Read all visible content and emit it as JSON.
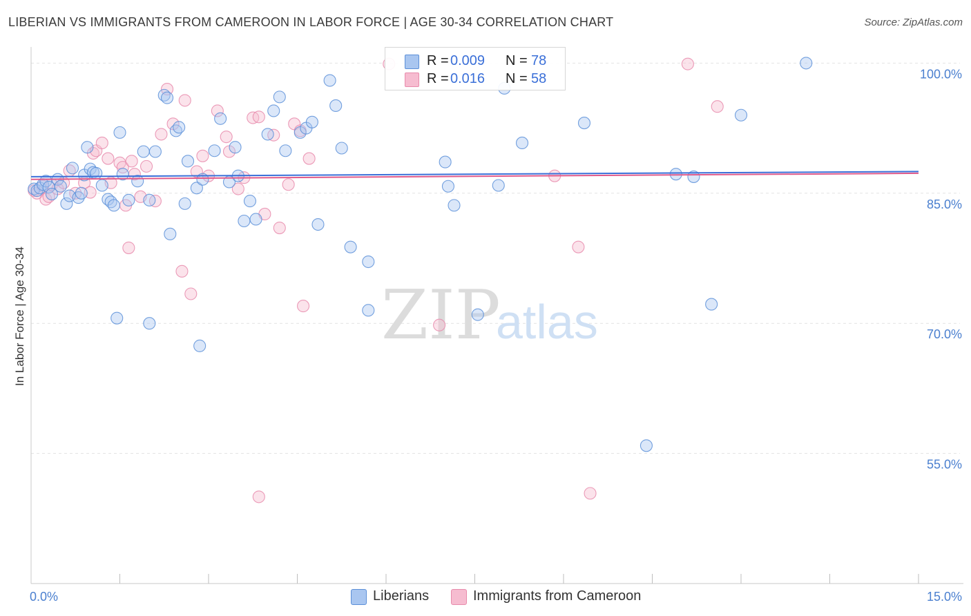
{
  "title": "LIBERIAN VS IMMIGRANTS FROM CAMEROON IN LABOR FORCE | AGE 30-34 CORRELATION CHART",
  "source": "Source: ZipAtlas.com",
  "colors": {
    "liberians_fill": "#a9c6f0",
    "liberians_stroke": "#5b8fd8",
    "liberians_line": "#3a6fd8",
    "cameroon_fill": "#f6bcd0",
    "cameroon_stroke": "#e88aab",
    "cameroon_line": "#e05a8a",
    "tick_label": "#4a7fcf"
  },
  "legend_top": {
    "rows": [
      {
        "r_label": "R =",
        "r_value": "0.009",
        "n_label": "N =",
        "n_value": "78"
      },
      {
        "r_label": "R =",
        "r_value": "0.016",
        "n_label": "N =",
        "n_value": "58"
      }
    ]
  },
  "legend_bottom": {
    "items": [
      "Liberians",
      "Immigrants from Cameroon"
    ]
  },
  "watermark": {
    "zip": "ZIP",
    "atlas": "atlas"
  },
  "chart_data": {
    "type": "scatter",
    "xlabel": "",
    "ylabel": "In Labor Force | Age 30-34",
    "xlim": [
      0,
      15
    ],
    "ylim": [
      40,
      102.5
    ],
    "x_tick_labels": [
      {
        "value": 0,
        "label": "0.0%"
      },
      {
        "value": 15,
        "label": "15.0%"
      }
    ],
    "y_tick_labels": [
      {
        "value": 55,
        "label": "55.0%"
      },
      {
        "value": 70,
        "label": "70.0%"
      },
      {
        "value": 85,
        "label": "85.0%"
      },
      {
        "value": 100,
        "label": "100.0%"
      }
    ],
    "y_gridlines": [
      55,
      70,
      85,
      100
    ],
    "x_minor_ticks": [
      1.5,
      3,
      4.5,
      6,
      7.5,
      9,
      10.5,
      12,
      13.5,
      15
    ],
    "series": [
      {
        "name": "Liberians",
        "R": 0.009,
        "N": 78,
        "trend": {
          "x": [
            0,
            15
          ],
          "y": [
            86.9,
            87.5
          ]
        },
        "points": [
          [
            0.05,
            85.5
          ],
          [
            0.1,
            85.3
          ],
          [
            0.15,
            85.6
          ],
          [
            0.2,
            86.0
          ],
          [
            0.25,
            86.4
          ],
          [
            0.3,
            85.7
          ],
          [
            0.35,
            84.9
          ],
          [
            0.45,
            86.6
          ],
          [
            0.5,
            85.8
          ],
          [
            0.6,
            83.8
          ],
          [
            0.65,
            84.7
          ],
          [
            0.7,
            87.9
          ],
          [
            0.8,
            84.5
          ],
          [
            0.85,
            85.0
          ],
          [
            0.9,
            87.1
          ],
          [
            0.95,
            90.3
          ],
          [
            1.0,
            87.8
          ],
          [
            1.05,
            87.4
          ],
          [
            1.1,
            87.3
          ],
          [
            1.2,
            85.9
          ],
          [
            1.3,
            84.3
          ],
          [
            1.35,
            84.0
          ],
          [
            1.4,
            83.6
          ],
          [
            1.5,
            92.0
          ],
          [
            1.55,
            87.2
          ],
          [
            1.65,
            84.2
          ],
          [
            1.8,
            86.4
          ],
          [
            1.9,
            89.8
          ],
          [
            2.0,
            84.2
          ],
          [
            2.1,
            89.8
          ],
          [
            2.25,
            96.3
          ],
          [
            2.3,
            96.0
          ],
          [
            2.35,
            80.3
          ],
          [
            2.45,
            92.2
          ],
          [
            2.5,
            92.6
          ],
          [
            2.6,
            83.8
          ],
          [
            2.65,
            88.7
          ],
          [
            2.8,
            85.6
          ],
          [
            2.9,
            86.6
          ],
          [
            3.1,
            89.9
          ],
          [
            3.2,
            93.6
          ],
          [
            3.35,
            86.3
          ],
          [
            3.45,
            90.3
          ],
          [
            3.5,
            87.0
          ],
          [
            3.6,
            81.8
          ],
          [
            3.7,
            84.1
          ],
          [
            3.8,
            82.0
          ],
          [
            4.0,
            91.8
          ],
          [
            4.1,
            94.5
          ],
          [
            4.2,
            96.1
          ],
          [
            4.3,
            89.9
          ],
          [
            4.55,
            92.0
          ],
          [
            4.65,
            92.5
          ],
          [
            4.75,
            93.2
          ],
          [
            4.85,
            81.4
          ],
          [
            5.05,
            98.0
          ],
          [
            5.15,
            95.1
          ],
          [
            5.25,
            90.2
          ],
          [
            5.4,
            78.8
          ],
          [
            5.7,
            77.1
          ],
          [
            1.45,
            70.6
          ],
          [
            2.0,
            70.0
          ],
          [
            2.85,
            67.4
          ],
          [
            5.7,
            71.5
          ],
          [
            7.0,
            88.6
          ],
          [
            7.05,
            85.8
          ],
          [
            7.15,
            83.6
          ],
          [
            7.55,
            71.0
          ],
          [
            7.9,
            85.9
          ],
          [
            8.3,
            90.8
          ],
          [
            9.35,
            93.1
          ],
          [
            11.5,
            72.2
          ],
          [
            12.0,
            94.0
          ],
          [
            8.0,
            97.1
          ],
          [
            11.2,
            86.9
          ],
          [
            10.9,
            87.2
          ],
          [
            10.4,
            55.9
          ],
          [
            13.1,
            100.0
          ]
        ]
      },
      {
        "name": "Immigrants from Cameroon",
        "R": 0.016,
        "N": 58,
        "trend": {
          "x": [
            0,
            15
          ],
          "y": [
            86.6,
            87.3
          ]
        },
        "points": [
          [
            0.05,
            85.3
          ],
          [
            0.1,
            85.0
          ],
          [
            0.2,
            85.8
          ],
          [
            0.25,
            84.3
          ],
          [
            0.3,
            84.6
          ],
          [
            0.35,
            86.0
          ],
          [
            0.45,
            85.5
          ],
          [
            0.55,
            86.2
          ],
          [
            0.65,
            87.6
          ],
          [
            0.75,
            85.0
          ],
          [
            0.9,
            86.2
          ],
          [
            1.0,
            85.1
          ],
          [
            1.05,
            89.6
          ],
          [
            1.1,
            89.9
          ],
          [
            1.2,
            90.8
          ],
          [
            1.3,
            89.0
          ],
          [
            1.35,
            86.2
          ],
          [
            1.5,
            88.5
          ],
          [
            1.55,
            88.0
          ],
          [
            1.6,
            83.6
          ],
          [
            1.65,
            78.7
          ],
          [
            1.7,
            88.7
          ],
          [
            1.75,
            87.2
          ],
          [
            1.85,
            84.6
          ],
          [
            1.95,
            88.1
          ],
          [
            2.1,
            84.1
          ],
          [
            2.2,
            91.8
          ],
          [
            2.3,
            97.0
          ],
          [
            2.4,
            93.0
          ],
          [
            2.55,
            76.0
          ],
          [
            2.6,
            95.7
          ],
          [
            2.7,
            73.4
          ],
          [
            2.8,
            87.5
          ],
          [
            2.9,
            89.3
          ],
          [
            3.0,
            87.0
          ],
          [
            3.15,
            94.5
          ],
          [
            3.3,
            91.5
          ],
          [
            3.35,
            89.8
          ],
          [
            3.5,
            85.5
          ],
          [
            3.6,
            86.8
          ],
          [
            3.75,
            93.7
          ],
          [
            3.85,
            93.8
          ],
          [
            3.95,
            82.6
          ],
          [
            4.1,
            91.7
          ],
          [
            4.2,
            81.0
          ],
          [
            4.35,
            86.0
          ],
          [
            4.45,
            93.0
          ],
          [
            4.55,
            92.2
          ],
          [
            4.7,
            89.0
          ],
          [
            4.6,
            72.0
          ],
          [
            3.85,
            50.0
          ],
          [
            6.05,
            99.9
          ],
          [
            6.9,
            69.8
          ],
          [
            8.85,
            87.0
          ],
          [
            9.25,
            78.8
          ],
          [
            9.45,
            50.4
          ],
          [
            11.1,
            99.9
          ],
          [
            11.6,
            95.0
          ]
        ]
      }
    ]
  }
}
